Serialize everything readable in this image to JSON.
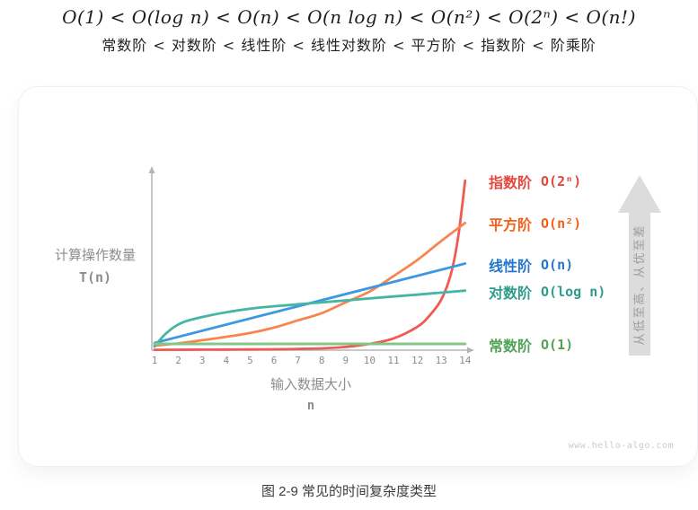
{
  "header": {
    "formula_math": "O(1) < O(log n) < O(n) < O(n log n) < O(n²) < O(2ⁿ) < O(n!)",
    "formula_cn": "常数阶 < 对数阶 < 线性阶 < 线性对数阶 < 平方阶 < 指数阶 < 阶乘阶"
  },
  "figure": {
    "y_axis_label": "计算操作数量",
    "y_axis_symbol": "T(n)",
    "x_axis_label": "输入数据大小",
    "x_axis_symbol": "n",
    "arrow_text": "从低至高、从优至差",
    "arrow_fill": "#dcdcdc",
    "arrow_text_color": "#9c9c9c",
    "axis_color": "#b5b5b5",
    "tick_color": "#8c8c8c",
    "watermark": "www.hello-algo.com",
    "caption": "图 2-9  常见的时间复杂度类型"
  },
  "chart_data": {
    "type": "line",
    "title": "常见的时间复杂度类型",
    "xlabel": "输入数据大小 n",
    "ylabel": "计算操作数量 T(n)",
    "x_range": [
      1,
      14
    ],
    "x_ticks": [
      1,
      2,
      3,
      4,
      5,
      6,
      7,
      8,
      9,
      10,
      11,
      12,
      13,
      14
    ],
    "y_axis": "schematic, unlabeled (relative operation count, 0-100)",
    "grid": false,
    "legend_position": "right",
    "series": [
      {
        "key": "exponential",
        "name": "指数阶",
        "notation": "O(2ⁿ)",
        "label_color": "#e5473d",
        "curve_color": "#ee5b55",
        "points": [
          [
            1,
            0.2
          ],
          [
            2,
            0.25
          ],
          [
            3,
            0.3
          ],
          [
            4,
            0.35
          ],
          [
            5,
            0.4
          ],
          [
            6,
            0.5
          ],
          [
            7,
            0.7
          ],
          [
            8,
            1
          ],
          [
            9,
            1.8
          ],
          [
            10,
            3.5
          ],
          [
            11,
            6.5
          ],
          [
            12,
            13
          ],
          [
            12.5,
            19
          ],
          [
            13,
            28
          ],
          [
            13.4,
            42
          ],
          [
            13.7,
            62
          ],
          [
            14,
            94
          ]
        ]
      },
      {
        "key": "quadratic",
        "name": "平方阶",
        "notation": "O(n²)",
        "label_color": "#f2611c",
        "curve_color": "#f8854f",
        "points": [
          [
            1,
            2.5
          ],
          [
            2,
            3.8
          ],
          [
            3,
            5.5
          ],
          [
            4,
            7.4
          ],
          [
            5,
            9.5
          ],
          [
            6,
            12.5
          ],
          [
            7,
            16.5
          ],
          [
            8,
            20.5
          ],
          [
            9,
            26.5
          ],
          [
            10,
            32.5
          ],
          [
            11,
            41
          ],
          [
            12,
            50
          ],
          [
            13,
            60.5
          ],
          [
            14,
            70.5
          ]
        ]
      },
      {
        "key": "linear",
        "name": "线性阶",
        "notation": "O(n)",
        "label_color": "#2577cd",
        "curve_color": "#3e97e3",
        "points": [
          [
            1,
            4
          ],
          [
            14,
            48
          ]
        ]
      },
      {
        "key": "logarithmic",
        "name": "对数阶",
        "notation": "O(log n)",
        "label_color": "#2f9d8e",
        "curve_color": "#46b5a4",
        "points": [
          [
            1,
            2
          ],
          [
            1.5,
            9.5
          ],
          [
            2.2,
            15.5
          ],
          [
            3.4,
            19.5
          ],
          [
            5,
            23
          ],
          [
            6.6,
            25
          ],
          [
            8.5,
            27
          ],
          [
            10.3,
            29
          ],
          [
            12.2,
            31
          ],
          [
            14,
            33
          ]
        ]
      },
      {
        "key": "constant",
        "name": "常数阶",
        "notation": "O(1)",
        "label_color": "#50a357",
        "curve_color": "#85c787",
        "points": [
          [
            1,
            3.5
          ],
          [
            14,
            3.5
          ]
        ]
      }
    ]
  }
}
